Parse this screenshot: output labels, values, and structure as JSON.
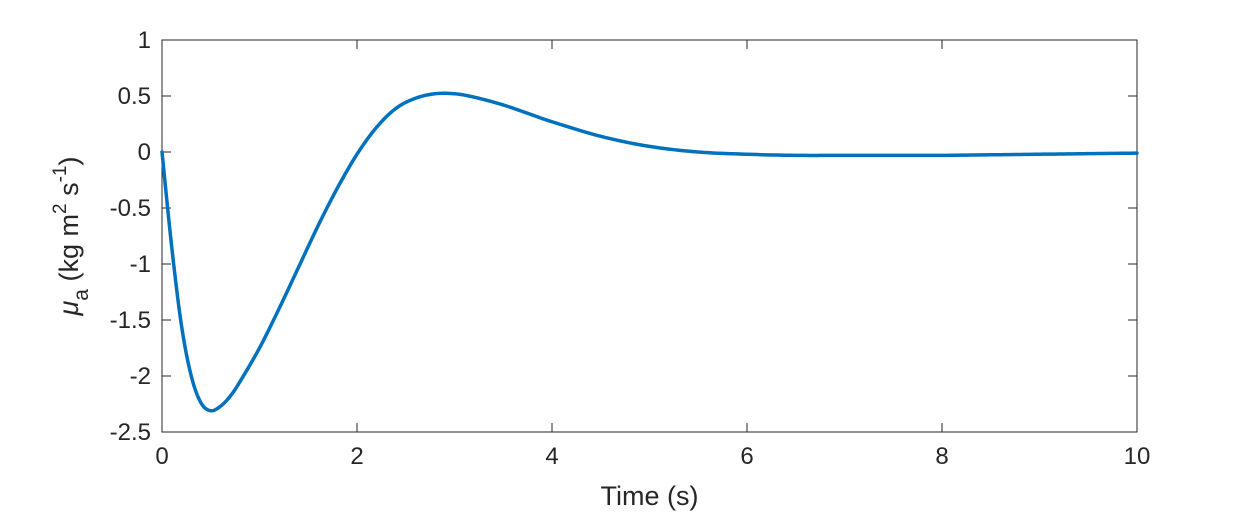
{
  "chart_data": {
    "type": "line",
    "title": "",
    "xlabel": "Time (s)",
    "ylabel": {
      "symbol": "μ",
      "subscript": "a",
      "units_open": " (kg m",
      "units_exp1": "2",
      "units_mid": " s",
      "units_exp2": "-1",
      "units_close": ")"
    },
    "xlim": [
      0,
      10
    ],
    "ylim": [
      -2.5,
      1
    ],
    "xticks": [
      0,
      2,
      4,
      6,
      8,
      10
    ],
    "xtick_labels": [
      "0",
      "2",
      "4",
      "6",
      "8",
      "10"
    ],
    "yticks": [
      1,
      0.5,
      0,
      -0.5,
      -1,
      -1.5,
      -2,
      -2.5
    ],
    "ytick_labels": [
      "1",
      "0.5",
      "0",
      "-0.5",
      "-1",
      "-1.5",
      "-2",
      "-2.5"
    ],
    "grid": false,
    "line_color": "#0072BD",
    "series": [
      {
        "x": [
          0,
          0.1,
          0.2,
          0.3,
          0.4,
          0.5,
          0.6,
          0.7,
          0.8,
          1.0,
          1.2,
          1.4,
          1.6,
          1.8,
          2.0,
          2.2,
          2.4,
          2.6,
          2.8,
          3.0,
          3.2,
          3.5,
          3.8,
          4.0,
          4.5,
          5.0,
          5.5,
          6.0,
          6.5,
          7.0,
          7.5,
          8.0,
          8.5,
          9.0,
          9.5,
          10.0
        ],
        "y": [
          0,
          -0.85,
          -1.55,
          -2.0,
          -2.24,
          -2.31,
          -2.27,
          -2.18,
          -2.05,
          -1.75,
          -1.4,
          -1.03,
          -0.66,
          -0.32,
          -0.02,
          0.22,
          0.39,
          0.48,
          0.52,
          0.52,
          0.49,
          0.42,
          0.33,
          0.27,
          0.14,
          0.05,
          0.0,
          -0.02,
          -0.03,
          -0.03,
          -0.03,
          -0.03,
          -0.025,
          -0.02,
          -0.015,
          -0.01
        ]
      }
    ]
  }
}
